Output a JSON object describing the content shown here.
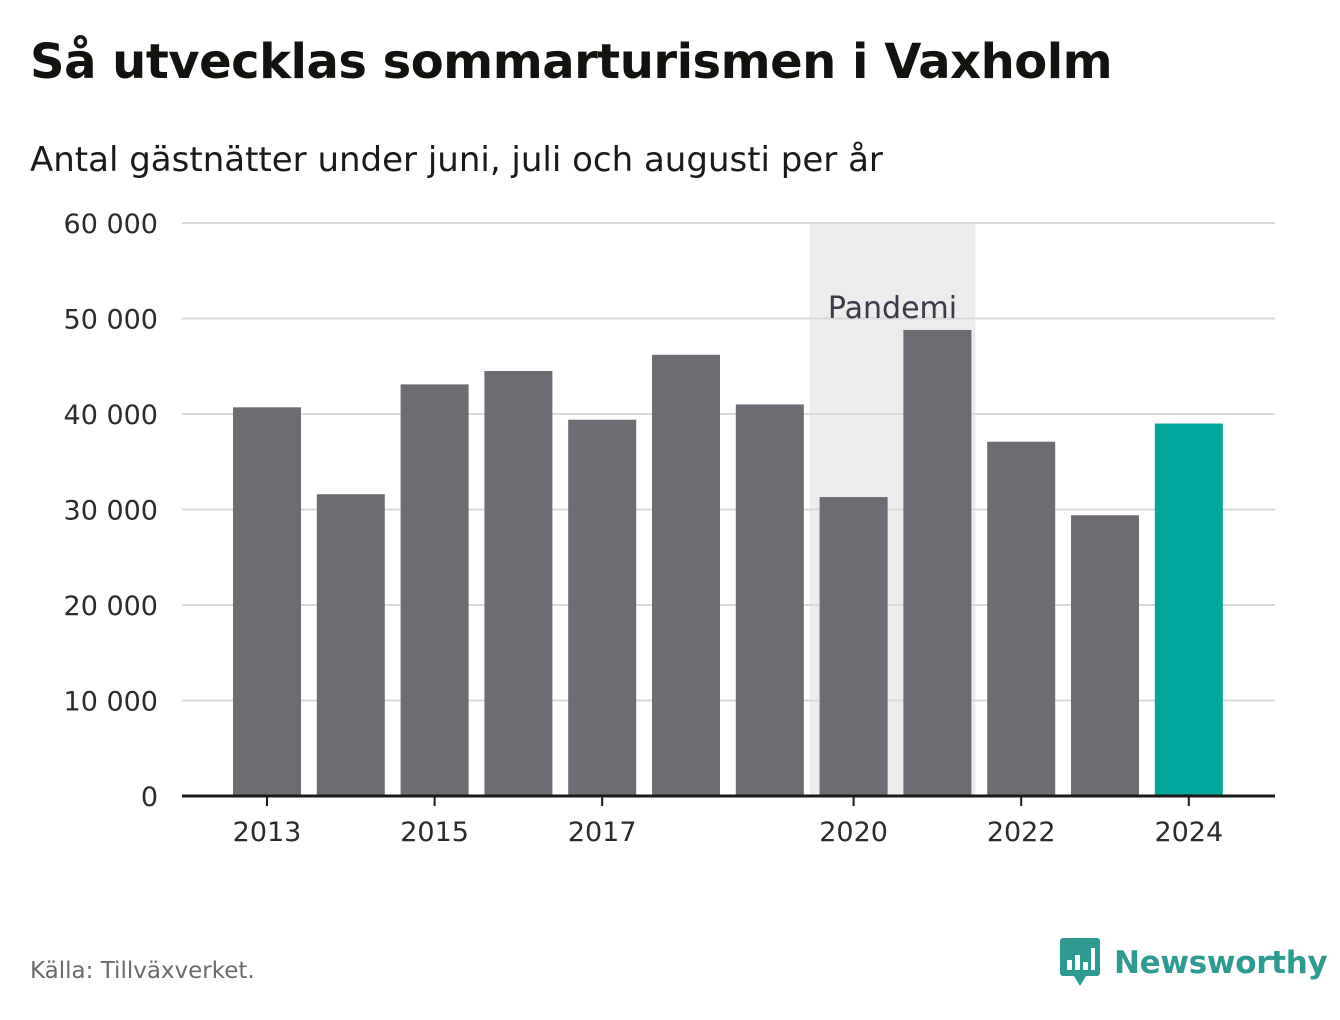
{
  "header": {
    "title": "Så utvecklas sommarturismen i Vaxholm",
    "subtitle": "Antal gästnätter under juni, juli och augusti per år"
  },
  "chart_data": {
    "type": "bar",
    "categories": [
      "2013",
      "2014",
      "2015",
      "2016",
      "2017",
      "2018",
      "2019",
      "2020",
      "2021",
      "2022",
      "2023",
      "2024"
    ],
    "x_tick_labels": [
      "2013",
      "2015",
      "2017",
      "2020",
      "2022",
      "2024"
    ],
    "values": [
      40700,
      31600,
      43100,
      44500,
      39400,
      46200,
      41000,
      31300,
      48800,
      37100,
      29400,
      39000
    ],
    "highlight_category": "2024",
    "colors": {
      "bar": "#6d6c72",
      "highlight": "#00a69a",
      "band": "#ececec",
      "grid": "#d9d9d9",
      "axis": "#1a1a1a"
    },
    "ylim": [
      0,
      60000
    ],
    "y_ticks": [
      0,
      10000,
      20000,
      30000,
      40000,
      50000,
      60000
    ],
    "y_tick_labels": [
      "0",
      "10 000",
      "20 000",
      "30 000",
      "40 000",
      "50 000",
      "60 000"
    ],
    "annotation": {
      "label": "Pandemi",
      "from": "2020",
      "to": "2021"
    },
    "xlabel": "",
    "ylabel": "",
    "grid": true
  },
  "footer": {
    "source": "Källa: Tillväxverket.",
    "brand": "Newsworthy",
    "brand_color": "#2e9a92"
  }
}
